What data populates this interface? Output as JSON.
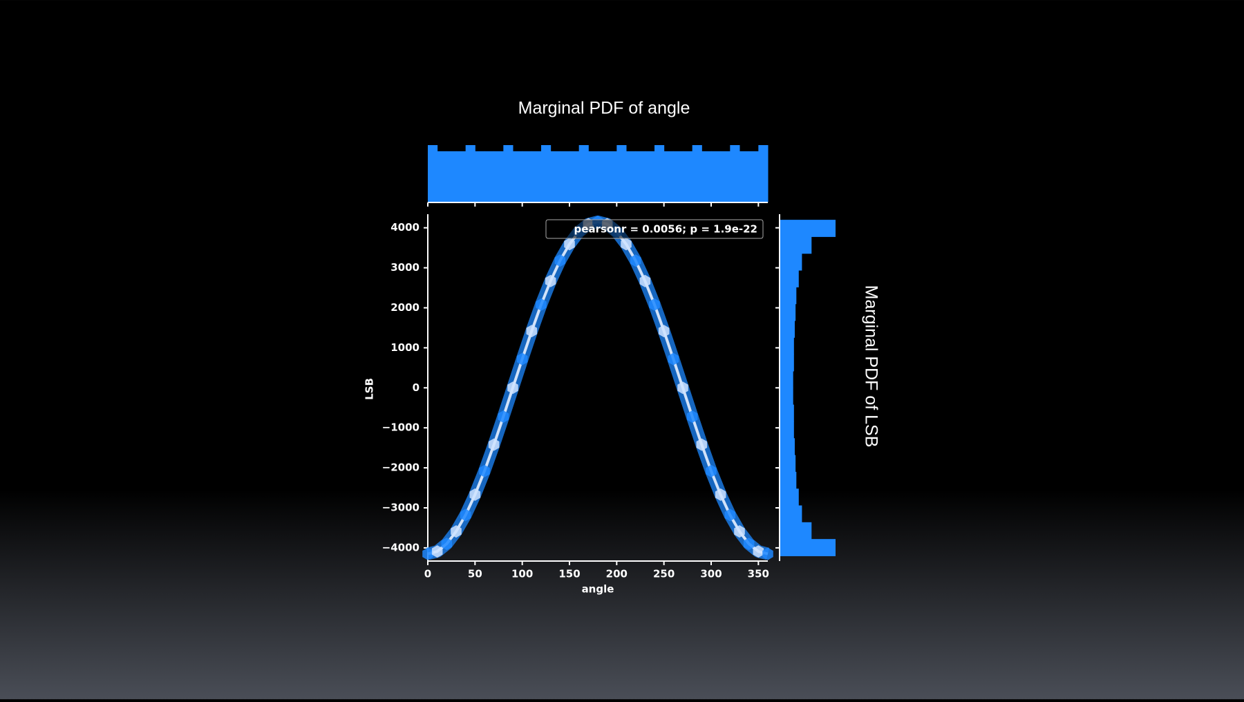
{
  "chart_data": {
    "type": "jointplot",
    "title_top": "Marginal PDF of angle",
    "title_right": "Marginal PDF of LSB",
    "x_label": "angle",
    "y_label": "LSB",
    "annotation": "pearsonr = 0.0056; p = 1.9e-22",
    "color": "#1e88ff",
    "x": [
      0,
      10,
      20,
      30,
      40,
      50,
      60,
      70,
      80,
      90,
      100,
      110,
      120,
      130,
      140,
      150,
      160,
      170,
      180,
      190,
      200,
      210,
      220,
      230,
      240,
      250,
      260,
      270,
      280,
      290,
      300,
      310,
      320,
      330,
      340,
      350,
      360
    ],
    "y": [
      -4150,
      -4090,
      -3900,
      -3590,
      -3180,
      -2670,
      -2080,
      -1420,
      -720,
      0,
      720,
      1420,
      2080,
      2670,
      3180,
      3590,
      3900,
      4090,
      4150,
      4090,
      3900,
      3590,
      3180,
      2670,
      2080,
      1420,
      720,
      0,
      -720,
      -1420,
      -2080,
      -2670,
      -3180,
      -3590,
      -3900,
      -4090,
      -4150
    ],
    "xlim": [
      0,
      360
    ],
    "ylim": [
      -4330,
      4340
    ],
    "xticks": [
      0,
      50,
      100,
      150,
      200,
      250,
      300,
      350
    ],
    "yticks": [
      {
        "value": -4000,
        "label": "−4000"
      },
      {
        "value": -3000,
        "label": "−3000"
      },
      {
        "value": -2000,
        "label": "−2000"
      },
      {
        "value": -1000,
        "label": "−1000"
      },
      0,
      1000,
      2000,
      3000,
      4000
    ],
    "top_hist": {
      "bins": [
        0,
        10,
        20,
        30,
        40,
        50,
        60,
        70,
        80,
        90,
        100,
        110,
        120,
        130,
        140,
        150,
        160,
        170,
        180,
        190,
        200,
        210,
        220,
        230,
        240,
        250,
        260,
        270,
        280,
        290,
        300,
        310,
        320,
        330,
        340,
        350,
        360
      ],
      "counts": [
        112,
        100,
        100,
        100,
        112,
        100,
        100,
        100,
        112,
        100,
        100,
        100,
        112,
        100,
        100,
        100,
        112,
        100,
        100,
        100,
        112,
        100,
        100,
        100,
        112,
        100,
        100,
        100,
        112,
        100,
        100,
        100,
        112,
        100,
        100,
        112
      ],
      "ylim": [
        0,
        112
      ]
    },
    "right_hist": {
      "bins": [
        -4200,
        -3780,
        -3360,
        -2940,
        -2520,
        -2100,
        -1680,
        -1260,
        -840,
        -420,
        0,
        420,
        840,
        1260,
        1680,
        2100,
        2520,
        2940,
        3360,
        3780,
        4200
      ],
      "counts": [
        70,
        40,
        28,
        24,
        21,
        20,
        19,
        18,
        18,
        17,
        17,
        18,
        18,
        19,
        20,
        21,
        24,
        28,
        40,
        70
      ],
      "xlim": [
        0,
        70
      ]
    }
  }
}
